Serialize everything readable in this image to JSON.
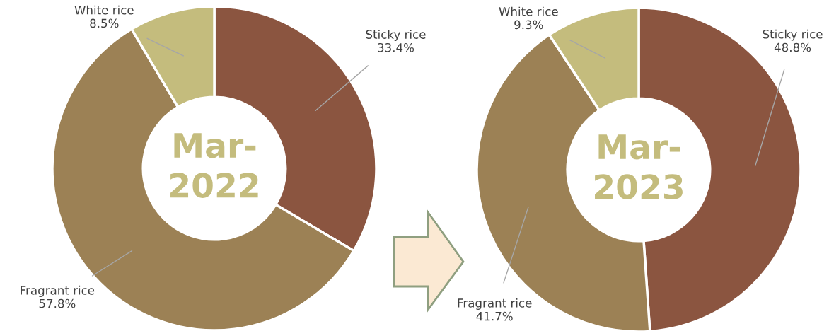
{
  "chart_data": [
    {
      "type": "donut",
      "title": "Mar-\n2022",
      "categories": [
        "Sticky rice",
        "Fragrant rice",
        "White rice"
      ],
      "values": [
        33.4,
        57.8,
        8.5
      ],
      "colors": [
        "#8b5540",
        "#9c8155",
        "#c4bc7d"
      ],
      "value_labels": [
        "33.4%",
        "57.8%",
        "8.5%"
      ],
      "legend": false
    },
    {
      "type": "donut",
      "title": "Mar-\n2023",
      "categories": [
        "Sticky rice",
        "Fragrant rice",
        "White rice"
      ],
      "values": [
        48.8,
        41.7,
        9.3
      ],
      "colors": [
        "#8b5540",
        "#9c8155",
        "#c4bc7d"
      ],
      "value_labels": [
        "48.8%",
        "41.7%",
        "9.3%"
      ],
      "legend": false
    }
  ]
}
